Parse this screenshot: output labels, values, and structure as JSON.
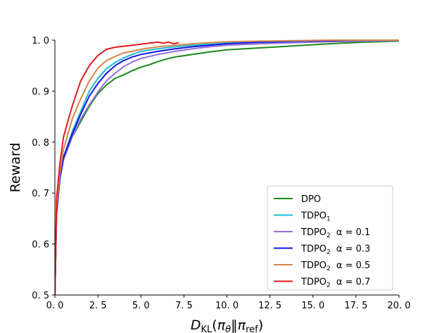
{
  "chart_data": {
    "type": "line",
    "title": "",
    "xlabel": "D_KL(π_θ‖π_ref)",
    "ylabel": "Reward",
    "xlim": [
      0,
      20
    ],
    "ylim": [
      0.5,
      1.0
    ],
    "xticks": [
      "0. 0",
      "2. 5",
      "5. 0",
      "7. 5",
      "10. 0",
      "12. 5",
      "15. 0",
      "17. 5",
      "20. 0"
    ],
    "xtick_values": [
      0,
      2.5,
      5,
      7.5,
      10,
      12.5,
      15,
      17.5,
      20
    ],
    "yticks": [
      "0. 5",
      "0. 6",
      "0. 7",
      "0. 8",
      "0. 9",
      "1. 0"
    ],
    "ytick_values": [
      0.5,
      0.6,
      0.7,
      0.8,
      0.9,
      1.0
    ],
    "grid": false,
    "legend_position": "lower-right",
    "series": [
      {
        "name": "DPO",
        "legend_base": "DPO",
        "legend_sub": "",
        "legend_alpha": "",
        "color": "#1a8a1a",
        "x": [
          0,
          0.1,
          0.3,
          0.5,
          1.0,
          1.5,
          2.0,
          2.5,
          3.0,
          3.5,
          4.0,
          4.5,
          5.0,
          5.5,
          6.0,
          6.5,
          7.0,
          8.0,
          9.0,
          10.0,
          12.0,
          14.0,
          16.0,
          18.0,
          20.0
        ],
        "y": [
          0.5,
          0.66,
          0.73,
          0.765,
          0.81,
          0.84,
          0.87,
          0.895,
          0.912,
          0.925,
          0.932,
          0.94,
          0.947,
          0.952,
          0.958,
          0.963,
          0.967,
          0.972,
          0.977,
          0.981,
          0.985,
          0.989,
          0.993,
          0.996,
          0.998
        ]
      },
      {
        "name": "TDPO1",
        "legend_base": "TDPO",
        "legend_sub": "1",
        "legend_alpha": "",
        "color": "#17becf",
        "x": [
          0,
          0.1,
          0.3,
          0.5,
          1.0,
          1.5,
          2.0,
          2.5,
          3.0,
          3.5,
          4.0,
          4.5,
          5.0,
          6.0,
          7.0,
          8.0,
          9.0,
          10.0,
          12.0,
          14.0,
          16.0,
          18.0,
          20.0
        ],
        "y": [
          0.5,
          0.66,
          0.73,
          0.77,
          0.82,
          0.86,
          0.9,
          0.925,
          0.944,
          0.956,
          0.965,
          0.972,
          0.978,
          0.983,
          0.987,
          0.99,
          0.992,
          0.994,
          0.996,
          0.997,
          0.998,
          0.999,
          1.0
        ]
      },
      {
        "name": "TDPO2 α = 0.1",
        "legend_base": "TDPO",
        "legend_sub": "2",
        "legend_alpha": "α = 0.1",
        "color": "#9370db",
        "x": [
          0,
          0.1,
          0.3,
          0.5,
          1.0,
          1.5,
          2.0,
          2.5,
          3.0,
          3.5,
          4.0,
          4.5,
          5.0,
          6.0,
          7.0,
          8.0,
          9.0,
          10.0,
          12.0,
          14.0,
          16.0,
          18.0,
          20.0
        ],
        "y": [
          0.5,
          0.66,
          0.73,
          0.765,
          0.81,
          0.845,
          0.873,
          0.898,
          0.92,
          0.935,
          0.948,
          0.957,
          0.964,
          0.972,
          0.978,
          0.983,
          0.987,
          0.99,
          0.993,
          0.995,
          0.997,
          0.998,
          0.999
        ]
      },
      {
        "name": "TDPO2 α = 0.3",
        "legend_base": "TDPO",
        "legend_sub": "2",
        "legend_alpha": "α = 0.3",
        "color": "#1515e0",
        "x": [
          0,
          0.1,
          0.3,
          0.5,
          1.0,
          1.5,
          2.0,
          2.5,
          3.0,
          3.5,
          4.0,
          4.5,
          5.0,
          6.0,
          7.0,
          8.0,
          9.0,
          10.0,
          12.0,
          14.0,
          16.0,
          18.0,
          20.0
        ],
        "y": [
          0.5,
          0.66,
          0.73,
          0.77,
          0.815,
          0.855,
          0.89,
          0.915,
          0.935,
          0.95,
          0.96,
          0.967,
          0.972,
          0.978,
          0.983,
          0.987,
          0.99,
          0.993,
          0.996,
          0.998,
          0.999,
          1.0,
          1.0
        ]
      },
      {
        "name": "TDPO2 α = 0.5",
        "legend_base": "TDPO",
        "legend_sub": "2",
        "legend_alpha": "α = 0.5",
        "color": "#d2884a",
        "x": [
          0,
          0.1,
          0.3,
          0.5,
          1.0,
          1.5,
          2.0,
          2.5,
          3.0,
          3.5,
          4.0,
          4.5,
          5.0,
          6.0,
          7.0,
          8.0,
          9.0,
          10.0,
          12.0,
          14.0,
          16.0,
          18.0,
          20.0
        ],
        "y": [
          0.5,
          0.67,
          0.74,
          0.785,
          0.845,
          0.885,
          0.92,
          0.945,
          0.96,
          0.968,
          0.975,
          0.978,
          0.982,
          0.987,
          0.99,
          0.993,
          0.995,
          0.997,
          0.998,
          0.999,
          1.0,
          1.0,
          1.0
        ]
      },
      {
        "name": "TDPO2 α = 0.7",
        "legend_base": "TDPO",
        "legend_sub": "2",
        "legend_alpha": "α = 0.7",
        "color": "#e31a1c",
        "x": [
          0,
          0.1,
          0.3,
          0.5,
          1.0,
          1.5,
          2.0,
          2.5,
          3.0,
          3.5,
          4.0,
          4.5,
          5.0,
          5.5,
          6.0,
          6.3,
          6.6,
          6.9,
          7.2
        ],
        "y": [
          0.5,
          0.69,
          0.76,
          0.81,
          0.87,
          0.92,
          0.95,
          0.97,
          0.982,
          0.986,
          0.988,
          0.99,
          0.992,
          0.994,
          0.996,
          0.994,
          0.996,
          0.993,
          0.995
        ]
      }
    ]
  }
}
